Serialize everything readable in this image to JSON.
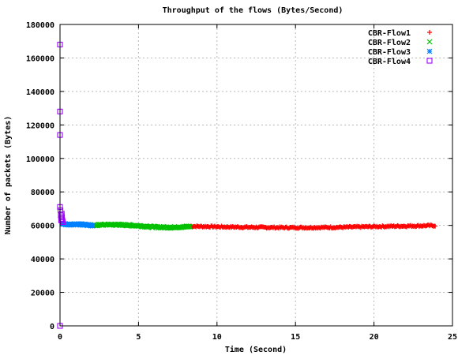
{
  "chart_data": {
    "type": "scatter",
    "title": "Throughput of the flows (Bytes/Second)",
    "xlabel": "Time (Second)",
    "ylabel": "Number of packets (Bytes)",
    "xlim": [
      0,
      25
    ],
    "ylim": [
      0,
      180000
    ],
    "x_ticks": [
      0,
      5,
      10,
      15,
      20,
      25
    ],
    "y_ticks": [
      0,
      20000,
      40000,
      60000,
      80000,
      100000,
      120000,
      140000,
      160000,
      180000
    ],
    "grid": true,
    "legend_position": "top-right",
    "series": [
      {
        "name": "CBR-Flow1",
        "marker": "plus",
        "color": "#ff0000",
        "x_start": 8.3,
        "x_end": 23.9,
        "x_step": 0.06,
        "curve_x": [
          8.3,
          10,
          12,
          14,
          16,
          18,
          20,
          22,
          23.9
        ],
        "curve_y": [
          59500,
          59200,
          58900,
          58700,
          58700,
          58900,
          59300,
          59600,
          59900
        ]
      },
      {
        "name": "CBR-Flow2",
        "marker": "x",
        "color": "#00c000",
        "x_start": 2.1,
        "x_end": 8.3,
        "x_step": 0.05,
        "curve_x": [
          2.1,
          3,
          4,
          5,
          6,
          7,
          8.3
        ],
        "curve_y": [
          60000,
          60500,
          60300,
          59800,
          59000,
          58800,
          59300
        ]
      },
      {
        "name": "CBR-Flow3",
        "marker": "star",
        "color": "#0080ff",
        "x_start": 0.15,
        "x_end": 2.1,
        "x_step": 0.035,
        "curve_x": [
          0.15,
          0.5,
          1.0,
          1.5,
          2.1
        ],
        "curve_y": [
          61000,
          60500,
          60800,
          60400,
          60000
        ]
      },
      {
        "name": "CBR-Flow4",
        "marker": "square",
        "color": "#a000ff",
        "points": [
          [
            0.0,
            0
          ],
          [
            0.0,
            114000
          ],
          [
            0.0,
            128000
          ],
          [
            0.0,
            168000
          ],
          [
            0.0,
            71000
          ],
          [
            0.03,
            69000
          ],
          [
            0.05,
            66000
          ],
          [
            0.07,
            63000
          ],
          [
            0.09,
            64000
          ],
          [
            0.11,
            67000
          ],
          [
            0.13,
            65000
          ],
          [
            0.15,
            63000
          ],
          [
            0.17,
            62000
          ]
        ]
      }
    ]
  }
}
